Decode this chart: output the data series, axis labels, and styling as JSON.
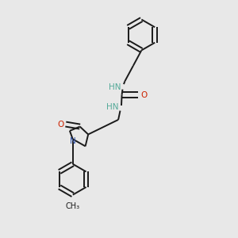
{
  "bg_color": "#e8e8e8",
  "bond_color": "#1a1a1a",
  "N_color": "#3355aa",
  "O_color": "#cc2200",
  "H_color": "#55aa99",
  "line_width": 1.4,
  "figsize": [
    3.0,
    3.0
  ],
  "dpi": 100,
  "xlim": [
    0,
    1
  ],
  "ylim": [
    0,
    1
  ]
}
